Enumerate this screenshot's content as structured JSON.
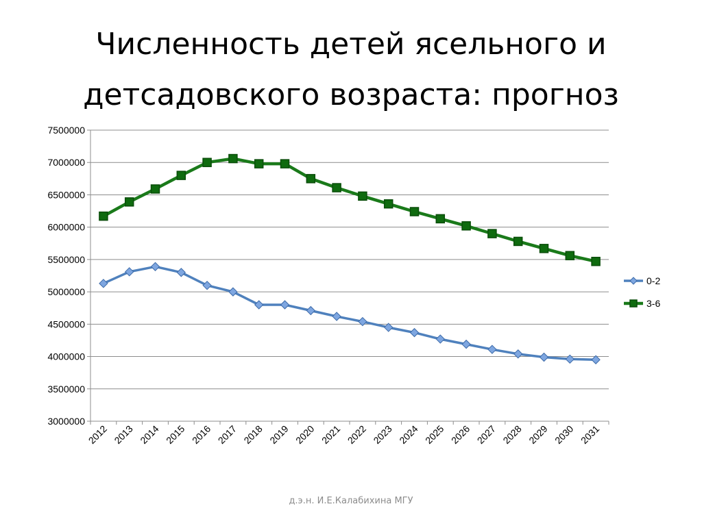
{
  "slide": {
    "title_line1": "Численность детей ясельного и",
    "title_line2": "детсадовского возраста: прогноз",
    "footer": "д.э.н. И.Е.Калабихина МГУ"
  },
  "chart_data": {
    "type": "line",
    "title": "",
    "xlabel": "",
    "ylabel": "",
    "x": [
      2012,
      2013,
      2014,
      2015,
      2016,
      2017,
      2018,
      2019,
      2020,
      2021,
      2022,
      2023,
      2024,
      2025,
      2026,
      2027,
      2028,
      2029,
      2030,
      2031
    ],
    "x_tick_labels": [
      "2012",
      "2013",
      "2014",
      "2015",
      "2016",
      "2017",
      "2018",
      "2019",
      "2020",
      "2021",
      "2022",
      "2023",
      "2024",
      "2025",
      "2026",
      "2027",
      "2028",
      "2029",
      "2030",
      "2031"
    ],
    "ylim": [
      3000000,
      7500000
    ],
    "y_tick_labels": [
      "3000000",
      "3500000",
      "4000000",
      "4500000",
      "5000000",
      "5500000",
      "6000000",
      "6500000",
      "7000000",
      "7500000"
    ],
    "y_ticks": [
      3000000,
      3500000,
      4000000,
      4500000,
      5000000,
      5500000,
      6000000,
      6500000,
      7000000,
      7500000
    ],
    "grid": "horizontal",
    "legend_position": "right",
    "series": [
      {
        "name": "0-2",
        "color": "#4f81bd",
        "marker": "diamond",
        "values": [
          5130000,
          5310000,
          5390000,
          5300000,
          5100000,
          5000000,
          4800000,
          4800000,
          4710000,
          4620000,
          4540000,
          4450000,
          4370000,
          4270000,
          4190000,
          4110000,
          4040000,
          3990000,
          3960000,
          3950000
        ]
      },
      {
        "name": "3-6",
        "color": "#1a7a1a",
        "marker": "square",
        "values": [
          6170000,
          6390000,
          6590000,
          6800000,
          7000000,
          7060000,
          6980000,
          6980000,
          6750000,
          6610000,
          6480000,
          6360000,
          6240000,
          6130000,
          6020000,
          5900000,
          5780000,
          5670000,
          5560000,
          5470000
        ]
      }
    ]
  }
}
